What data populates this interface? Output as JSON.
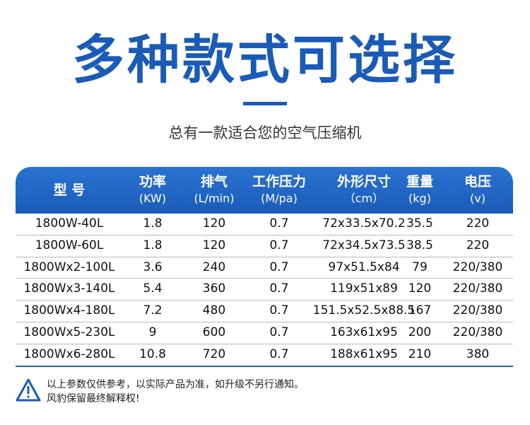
{
  "title": "多种款式可选择",
  "subtitle": "总有一款适合您的空气压缩机",
  "table": {
    "headers": [
      {
        "name": "型 号",
        "unit": ""
      },
      {
        "name": "功率",
        "unit": "(KW)"
      },
      {
        "name": "排气",
        "unit": "(L/min)"
      },
      {
        "name": "工作压力",
        "unit": "(M/pa)"
      },
      {
        "name": "外形尺寸",
        "unit": "（cm）"
      },
      {
        "name": "重量",
        "unit": "(kg)"
      },
      {
        "name": "电压",
        "unit": "(v)"
      }
    ],
    "rows": [
      [
        "1800W-40L",
        "1.8",
        "120",
        "0.7",
        "72x33.5x70.2",
        "35.5",
        "220"
      ],
      [
        "1800W-60L",
        "1.8",
        "120",
        "0.7",
        "72x34.5x73.5",
        "38.5",
        "220"
      ],
      [
        "1800Wx2-100L",
        "3.6",
        "240",
        "0.7",
        "97x51.5x84",
        "79",
        "220/380"
      ],
      [
        "1800Wx3-140L",
        "5.4",
        "360",
        "0.7",
        "119x51x89",
        "120",
        "220/380"
      ],
      [
        "1800Wx4-180L",
        "7.2",
        "480",
        "0.7",
        "151.5x52.5x88.5",
        "167",
        "220/380"
      ],
      [
        "1800Wx5-230L",
        "9",
        "600",
        "0.7",
        "163x61x95",
        "200",
        "220/380"
      ],
      [
        "1800Wx6-280L",
        "10.8",
        "720",
        "0.7",
        "188x61x95",
        "210",
        "380"
      ]
    ]
  },
  "notice": {
    "icon": "warning-triangle-icon",
    "line1": "以上参数仅供参考，以实际产品为准，如升级不另行通知。",
    "line2": "风豹保留最终解释权!"
  },
  "colors": {
    "accent": "#1a5bb8"
  }
}
